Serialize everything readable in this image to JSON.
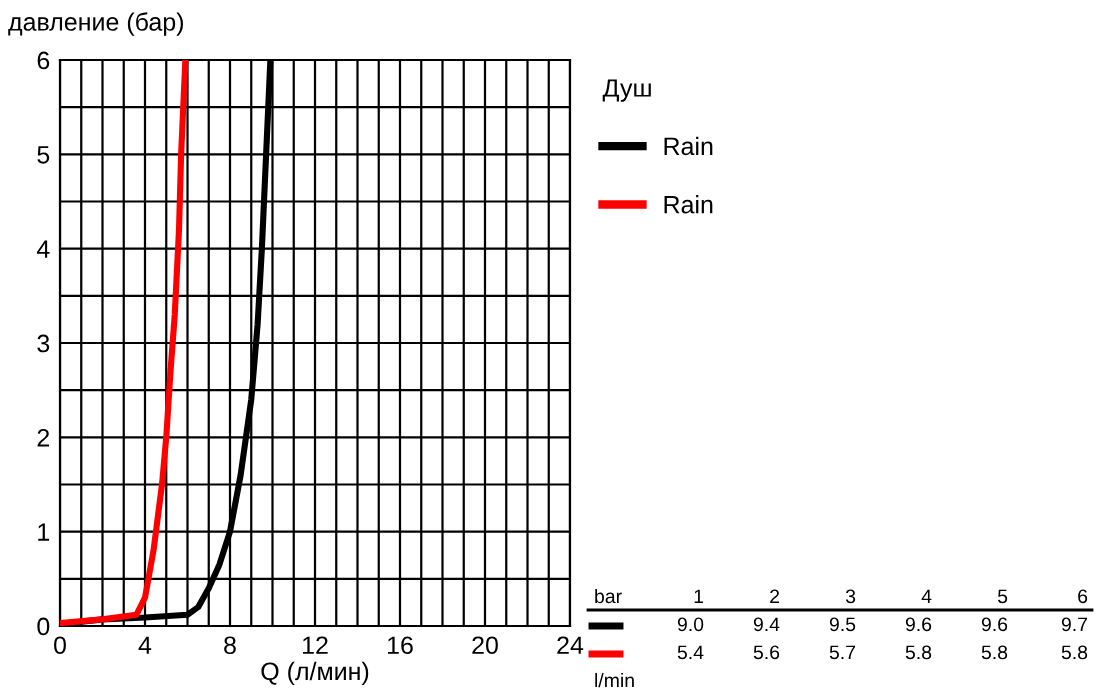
{
  "chart_data": {
    "type": "line",
    "ylabel": "давление (бар)",
    "xlabel": "Q (л/мин)",
    "legend_title": "Душ",
    "legend": "right",
    "grid": true,
    "line_style": "solid",
    "marker": "none",
    "xlim": [
      0,
      24
    ],
    "ylim": [
      0,
      6
    ],
    "xticks": [
      0,
      {
        "value": 1,
        "label": null
      },
      {
        "value": 2,
        "label": null
      },
      {
        "value": 3,
        "label": null
      },
      4,
      {
        "value": 5,
        "label": null
      },
      {
        "value": 6,
        "label": null
      },
      {
        "value": 7,
        "label": null
      },
      8,
      {
        "value": 9,
        "label": null
      },
      {
        "value": 10,
        "label": null
      },
      {
        "value": 11,
        "label": null
      },
      12,
      {
        "value": 13,
        "label": null
      },
      {
        "value": 14,
        "label": null
      },
      {
        "value": 15,
        "label": null
      },
      16,
      {
        "value": 17,
        "label": null
      },
      {
        "value": 18,
        "label": null
      },
      {
        "value": 19,
        "label": null
      },
      20,
      {
        "value": 21,
        "label": null
      },
      {
        "value": 22,
        "label": null
      },
      {
        "value": 23,
        "label": null
      },
      24
    ],
    "yticks": [
      0,
      {
        "value": 0.5,
        "label": null
      },
      1,
      {
        "value": 1.5,
        "label": null
      },
      2,
      {
        "value": 2.5,
        "label": null
      },
      3,
      {
        "value": 3.5,
        "label": null
      },
      4,
      {
        "value": 4.5,
        "label": null
      },
      5,
      {
        "value": 5.5,
        "label": null
      },
      6
    ],
    "series": [
      {
        "name": "Rain",
        "color": "#000000",
        "x": [
          0,
          2,
          4,
          6,
          6.5,
          7,
          7.5,
          8,
          8.5,
          9,
          9.3,
          9.5,
          9.7,
          9.9
        ],
        "values": [
          0.02,
          0.07,
          0.09,
          0.12,
          0.2,
          0.4,
          0.65,
          1.0,
          1.6,
          2.4,
          3.2,
          4.0,
          5.0,
          6.0
        ]
      },
      {
        "name": "Rain",
        "color": "#ff0000",
        "x": [
          0,
          2,
          3.6,
          4,
          4.4,
          4.8,
          5.0,
          5.2,
          5.4,
          5.6,
          5.7,
          5.9
        ],
        "values": [
          0.03,
          0.07,
          0.12,
          0.3,
          0.8,
          1.5,
          2.0,
          2.7,
          3.3,
          4.2,
          5.0,
          6.0
        ]
      }
    ],
    "annotations": [
      "bar",
      "1",
      "2",
      "3",
      "4",
      "5",
      "6",
      "9.0",
      "9.4",
      "9.5",
      "9.6",
      "9.6",
      "9.7",
      "5.4",
      "5.6",
      "5.7",
      "5.8",
      "5.8",
      "5.8",
      "l/min"
    ]
  }
}
